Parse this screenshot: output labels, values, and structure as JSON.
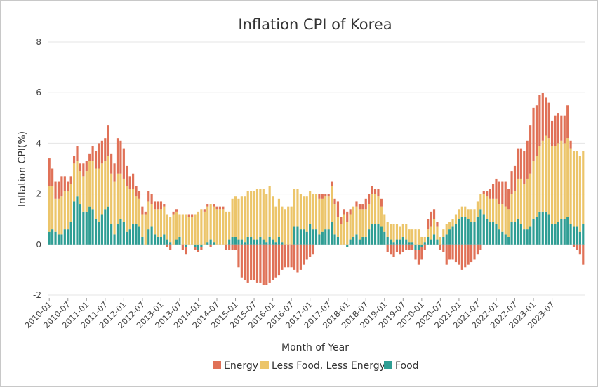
{
  "chart_data": {
    "type": "bar",
    "stacked": true,
    "title": "Inflation CPI of Korea",
    "xlabel": "Month of Year",
    "ylabel": "Inflation CPI(%)",
    "ylim": [
      -2,
      8
    ],
    "yticks": [
      -2,
      0,
      2,
      4,
      6,
      8
    ],
    "grid": "horizontal",
    "legend_position": "bottom",
    "x_tick_labels": [
      "2010-01",
      "2010-07",
      "2011-01",
      "2011-07",
      "2012-01",
      "2012-07",
      "2013-01",
      "2013-07",
      "2014-01",
      "2014-07",
      "2015-01",
      "2015-07",
      "2016-01",
      "2016-07",
      "2017-01",
      "2017-07",
      "2018-01",
      "2018-07",
      "2019-01",
      "2019-07",
      "2020-01",
      "2020-07",
      "2021-01",
      "2021-07",
      "2022-01",
      "2022-07",
      "2023-01",
      "2023-07"
    ],
    "series": [
      {
        "name": "Food",
        "color": "#2f9e94",
        "values": [
          0.5,
          0.6,
          0.5,
          0.4,
          0.4,
          0.6,
          0.6,
          0.9,
          1.7,
          1.9,
          1.6,
          1.3,
          1.3,
          1.5,
          1.4,
          1.0,
          0.9,
          1.2,
          1.4,
          1.5,
          0.8,
          0.4,
          0.8,
          1.0,
          0.9,
          0.5,
          0.6,
          0.8,
          0.8,
          0.7,
          0.3,
          0.0,
          0.6,
          0.7,
          0.4,
          0.3,
          0.3,
          0.4,
          0.2,
          0.1,
          0.0,
          0.2,
          0.3,
          0.0,
          -0.1,
          0.0,
          0.0,
          -0.1,
          -0.2,
          -0.1,
          0.0,
          0.1,
          0.2,
          0.1,
          0.0,
          0.0,
          0.0,
          0.0,
          0.2,
          0.3,
          0.3,
          0.2,
          0.2,
          0.1,
          0.3,
          0.3,
          0.2,
          0.2,
          0.3,
          0.2,
          0.1,
          0.3,
          0.2,
          0.1,
          0.3,
          0.1,
          0.0,
          0.0,
          0.0,
          0.7,
          0.7,
          0.6,
          0.6,
          0.5,
          0.8,
          0.6,
          0.6,
          0.4,
          0.5,
          0.6,
          0.6,
          0.9,
          0.4,
          0.3,
          0.0,
          0.0,
          -0.1,
          0.2,
          0.3,
          0.4,
          0.2,
          0.3,
          0.3,
          0.6,
          0.8,
          0.8,
          0.8,
          0.7,
          0.5,
          0.3,
          0.2,
          0.1,
          0.2,
          0.2,
          0.3,
          0.2,
          0.1,
          0.1,
          -0.2,
          -0.2,
          -0.1,
          0.1,
          0.3,
          0.2,
          0.4,
          0.2,
          0.0,
          0.3,
          0.4,
          0.6,
          0.7,
          0.8,
          1.0,
          1.1,
          1.1,
          1.0,
          0.9,
          0.9,
          1.1,
          1.4,
          1.2,
          1.0,
          0.9,
          0.9,
          0.8,
          0.6,
          0.5,
          0.4,
          0.3,
          0.9,
          0.9,
          1.0,
          0.8,
          0.6,
          0.6,
          0.7,
          1.0,
          1.1,
          1.3,
          1.3,
          1.3,
          1.2,
          0.8,
          0.8,
          0.9,
          1.0,
          1.0,
          1.1,
          0.8,
          0.7,
          0.7,
          0.5,
          0.8
        ]
      },
      {
        "name": "Less Food, Less Energy",
        "color": "#ecc56a",
        "values": [
          1.8,
          1.7,
          1.3,
          1.4,
          1.5,
          1.5,
          1.5,
          1.5,
          1.5,
          1.4,
          1.3,
          1.4,
          1.6,
          1.8,
          1.9,
          2.0,
          2.1,
          2.0,
          1.9,
          2.0,
          2.0,
          2.1,
          2.0,
          1.8,
          1.7,
          1.8,
          1.6,
          1.4,
          1.1,
          1.1,
          0.9,
          1.2,
          1.1,
          0.9,
          1.0,
          1.1,
          1.1,
          1.1,
          1.0,
          1.0,
          1.2,
          1.1,
          0.9,
          1.2,
          1.2,
          1.1,
          1.1,
          1.2,
          1.3,
          1.4,
          1.3,
          1.4,
          1.4,
          1.4,
          1.4,
          1.4,
          1.4,
          1.3,
          1.1,
          1.5,
          1.6,
          1.6,
          1.7,
          1.8,
          1.8,
          1.8,
          1.9,
          2.0,
          1.9,
          2.0,
          1.9,
          2.0,
          1.7,
          1.4,
          1.5,
          1.4,
          1.4,
          1.5,
          1.5,
          1.5,
          1.5,
          1.4,
          1.3,
          1.4,
          1.3,
          1.4,
          1.4,
          1.4,
          1.3,
          1.3,
          1.3,
          1.4,
          1.2,
          0.8,
          0.8,
          1.2,
          0.9,
          1.0,
          1.2,
          1.1,
          1.2,
          1.1,
          1.1,
          1.0,
          1.2,
          1.2,
          1.1,
          0.8,
          0.7,
          0.6,
          0.6,
          0.7,
          0.6,
          0.5,
          0.5,
          0.6,
          0.5,
          0.5,
          0.6,
          0.6,
          0.3,
          0.2,
          0.3,
          0.5,
          0.6,
          0.5,
          0.3,
          0.3,
          0.4,
          0.3,
          0.3,
          0.4,
          0.4,
          0.4,
          0.4,
          0.4,
          0.5,
          0.5,
          0.6,
          0.6,
          0.8,
          0.9,
          0.9,
          0.9,
          1.0,
          1.0,
          1.1,
          1.1,
          1.1,
          1.1,
          1.2,
          1.6,
          1.8,
          1.8,
          2.0,
          2.1,
          2.3,
          2.4,
          2.6,
          2.8,
          3.0,
          3.0,
          3.1,
          3.1,
          3.1,
          3.1,
          3.0,
          3.1,
          3.0,
          3.0,
          3.0,
          3.0,
          2.9,
          2.7,
          2.4
        ]
      },
      {
        "name": "Energy",
        "color": "#e07157",
        "values": [
          1.1,
          0.7,
          0.7,
          0.7,
          0.8,
          0.6,
          0.4,
          0.3,
          0.3,
          0.6,
          0.3,
          0.5,
          0.4,
          0.3,
          0.6,
          0.7,
          1.0,
          0.9,
          0.9,
          1.2,
          0.8,
          0.7,
          1.4,
          1.3,
          1.2,
          0.8,
          0.5,
          0.6,
          0.4,
          0.3,
          0.3,
          0.1,
          0.4,
          0.4,
          0.3,
          0.3,
          0.3,
          0.1,
          -0.1,
          -0.2,
          0.1,
          0.1,
          0.0,
          -0.2,
          -0.3,
          0.1,
          0.1,
          -0.1,
          -0.1,
          -0.1,
          0.1,
          0.1,
          -0.1,
          0.1,
          0.1,
          0.1,
          0.1,
          -0.2,
          -0.2,
          -0.2,
          -0.2,
          -0.9,
          -1.3,
          -1.4,
          -1.5,
          -1.4,
          -1.4,
          -1.5,
          -1.5,
          -1.6,
          -1.6,
          -1.5,
          -1.4,
          -1.3,
          -1.2,
          -1.0,
          -0.9,
          -0.9,
          -0.9,
          -1.0,
          -1.1,
          -1.0,
          -0.8,
          -0.6,
          -0.5,
          -0.4,
          0.0,
          0.2,
          0.2,
          0.1,
          0.1,
          0.2,
          0.2,
          0.6,
          0.3,
          0.2,
          0.4,
          0.2,
          0.0,
          0.2,
          0.2,
          0.2,
          0.4,
          0.4,
          0.3,
          0.2,
          0.3,
          0.3,
          0.0,
          -0.3,
          -0.4,
          -0.5,
          -0.3,
          -0.4,
          -0.3,
          -0.2,
          -0.2,
          -0.2,
          -0.4,
          -0.6,
          -0.5,
          -0.2,
          0.4,
          0.6,
          0.4,
          0.2,
          -0.2,
          -0.3,
          -0.8,
          -0.6,
          -0.6,
          -0.7,
          -0.8,
          -1.0,
          -0.9,
          -0.8,
          -0.7,
          -0.6,
          -0.4,
          -0.2,
          0.1,
          0.2,
          0.4,
          0.6,
          0.8,
          0.9,
          0.9,
          1.0,
          0.8,
          0.9,
          1.0,
          1.2,
          1.2,
          1.3,
          1.5,
          1.9,
          2.1,
          2.0,
          2.0,
          1.9,
          1.5,
          1.4,
          1.0,
          1.2,
          1.2,
          1.0,
          1.1,
          1.3,
          0.3,
          -0.1,
          -0.2,
          -0.4,
          -0.8,
          0.1
        ]
      }
    ]
  },
  "legend": {
    "items": [
      {
        "label": "Energy",
        "color": "#e07157"
      },
      {
        "label": "Less Food, Less Energy",
        "color": "#ecc56a"
      },
      {
        "label": "Food",
        "color": "#2f9e94"
      }
    ]
  }
}
